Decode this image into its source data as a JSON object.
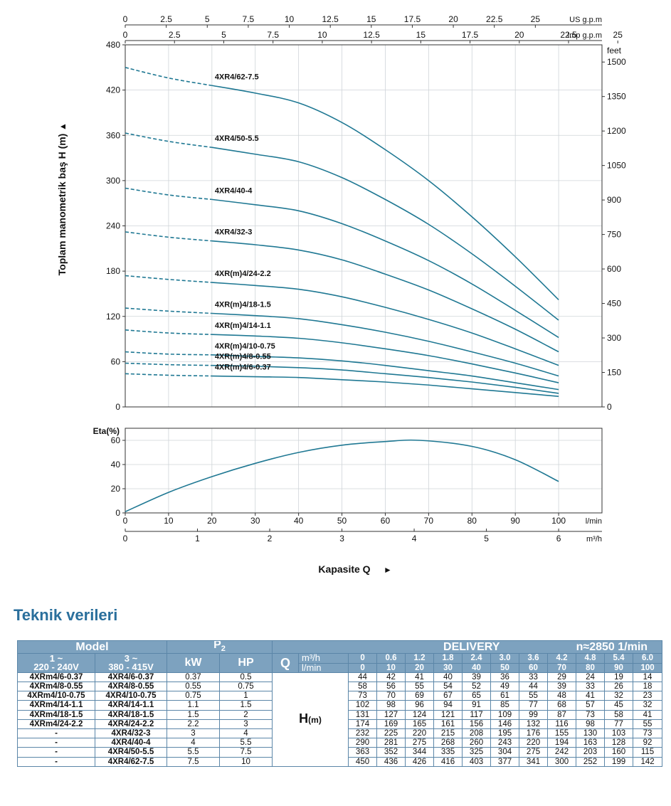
{
  "chart_data": {
    "type": "line",
    "head_chart": {
      "ylabel": "Toplam manometrik baş H (m)",
      "ylabel_arrow": "▲",
      "y_unit_right": "feet",
      "ylim": [
        0,
        480
      ],
      "yticks": [
        0,
        60,
        120,
        180,
        240,
        300,
        360,
        420,
        480
      ],
      "yticks_right": [
        0,
        150,
        300,
        450,
        600,
        750,
        900,
        1050,
        1200,
        1350,
        1500
      ],
      "xlim": [
        0,
        100
      ],
      "top_axis_us": {
        "label": "US g.p.m",
        "ticks": [
          "0",
          "2.5",
          "5",
          "7.5",
          "10",
          "12.5",
          "15",
          "17.5",
          "20",
          "22.5",
          "25"
        ]
      },
      "top_axis_imp": {
        "label": "Imp g.p.m",
        "ticks": [
          "0",
          "2.5",
          "5",
          "7.5",
          "10",
          "12.5",
          "15",
          "17.5",
          "20",
          "22.5",
          "25"
        ]
      },
      "x": [
        0,
        10,
        20,
        30,
        40,
        50,
        60,
        70,
        80,
        90,
        100
      ],
      "series": [
        {
          "name": "4XR4/62-7.5",
          "values": [
            450,
            436,
            426,
            416,
            403,
            377,
            341,
            300,
            252,
            199,
            142
          ]
        },
        {
          "name": "4XR4/50-5.5",
          "values": [
            363,
            352,
            344,
            335,
            325,
            304,
            275,
            242,
            203,
            160,
            115
          ]
        },
        {
          "name": "4XR4/40-4",
          "values": [
            290,
            281,
            275,
            268,
            260,
            243,
            220,
            194,
            163,
            128,
            92
          ]
        },
        {
          "name": "4XR4/32-3",
          "values": [
            232,
            225,
            220,
            215,
            208,
            195,
            176,
            155,
            130,
            103,
            73
          ]
        },
        {
          "name": "4XR(m)4/24-2.2",
          "values": [
            174,
            169,
            165,
            161,
            156,
            146,
            132,
            116,
            98,
            77,
            55
          ]
        },
        {
          "name": "4XR(m)4/18-1.5",
          "values": [
            131,
            127,
            124,
            121,
            117,
            109,
            99,
            87,
            73,
            58,
            41
          ]
        },
        {
          "name": "4XR(m)4/14-1.1",
          "values": [
            102,
            98,
            96,
            94,
            91,
            85,
            77,
            68,
            57,
            45,
            32
          ]
        },
        {
          "name": "4XR(m)4/10-0.75",
          "values": [
            73,
            70,
            69,
            67,
            65,
            61,
            55,
            48,
            41,
            32,
            23
          ]
        },
        {
          "name": "4XR(m)4/8-0.55",
          "values": [
            58,
            56,
            55,
            54,
            52,
            49,
            44,
            39,
            33,
            26,
            18
          ]
        },
        {
          "name": "4XR(m)4/6-0.37",
          "values": [
            44,
            42,
            41,
            40,
            39,
            36,
            33,
            29,
            24,
            19,
            14
          ]
        }
      ],
      "dashed_until_x": 20
    },
    "eta_chart": {
      "ylabel": "Eta(%)",
      "ylim": [
        0,
        70
      ],
      "yticks": [
        0,
        20,
        40,
        60
      ],
      "x": [
        0,
        10,
        20,
        30,
        40,
        50,
        60,
        68,
        80,
        90,
        100
      ],
      "values": [
        1,
        17,
        30,
        41,
        50,
        56,
        59,
        60,
        55,
        44,
        26
      ]
    },
    "x_axis_lmin": {
      "label": "l/min",
      "ticks": [
        0,
        10,
        20,
        30,
        40,
        50,
        60,
        70,
        80,
        90,
        100
      ]
    },
    "x_axis_m3h": {
      "label": "m³/h",
      "ticks": [
        0,
        1,
        2,
        3,
        4,
        5,
        6
      ]
    },
    "xlabel": "Kapasite Q",
    "xlabel_arrow": "►"
  },
  "section_title": "Teknik verileri",
  "table": {
    "model_label": "Model",
    "p2_label": "P",
    "p2_sub": "2",
    "delivery_label": "DELIVERY",
    "speed_label": "n≈2850 1/min",
    "phase1_line1": "1 ~",
    "phase1_line2": "220 - 240V",
    "phase3_line1": "3 ~",
    "phase3_line2": "380 - 415V",
    "kw_label": "kW",
    "hp_label": "HP",
    "q_label": "Q",
    "q_unit_m3h": "m³/h",
    "q_unit_lmin": "l/min",
    "q_m3h": [
      "0",
      "0.6",
      "1.2",
      "1.8",
      "2.4",
      "3.0",
      "3.6",
      "4.2",
      "4.8",
      "5.4",
      "6.0"
    ],
    "q_lmin": [
      "0",
      "10",
      "20",
      "30",
      "40",
      "50",
      "60",
      "70",
      "80",
      "90",
      "100"
    ],
    "h_label": "H",
    "h_unit": "(m)",
    "rows": [
      {
        "m1": "4XRm4/6-0.37",
        "m3": "4XR4/6-0.37",
        "kw": "0.37",
        "hp": "0.5",
        "h": [
          "44",
          "42",
          "41",
          "40",
          "39",
          "36",
          "33",
          "29",
          "24",
          "19",
          "14"
        ]
      },
      {
        "m1": "4XRm4/8-0.55",
        "m3": "4XR4/8-0.55",
        "kw": "0.55",
        "hp": "0.75",
        "h": [
          "58",
          "56",
          "55",
          "54",
          "52",
          "49",
          "44",
          "39",
          "33",
          "26",
          "18"
        ]
      },
      {
        "m1": "4XRm4/10-0.75",
        "m3": "4XR4/10-0.75",
        "kw": "0.75",
        "hp": "1",
        "h": [
          "73",
          "70",
          "69",
          "67",
          "65",
          "61",
          "55",
          "48",
          "41",
          "32",
          "23"
        ]
      },
      {
        "m1": "4XRm4/14-1.1",
        "m3": "4XR4/14-1.1",
        "kw": "1.1",
        "hp": "1.5",
        "h": [
          "102",
          "98",
          "96",
          "94",
          "91",
          "85",
          "77",
          "68",
          "57",
          "45",
          "32"
        ]
      },
      {
        "m1": "4XRm4/18-1.5",
        "m3": "4XR4/18-1.5",
        "kw": "1.5",
        "hp": "2",
        "h": [
          "131",
          "127",
          "124",
          "121",
          "117",
          "109",
          "99",
          "87",
          "73",
          "58",
          "41"
        ]
      },
      {
        "m1": "4XRm4/24-2.2",
        "m3": "4XR4/24-2.2",
        "kw": "2.2",
        "hp": "3",
        "h": [
          "174",
          "169",
          "165",
          "161",
          "156",
          "146",
          "132",
          "116",
          "98",
          "77",
          "55"
        ]
      },
      {
        "m1": "-",
        "m3": "4XR4/32-3",
        "kw": "3",
        "hp": "4",
        "h": [
          "232",
          "225",
          "220",
          "215",
          "208",
          "195",
          "176",
          "155",
          "130",
          "103",
          "73"
        ]
      },
      {
        "m1": "-",
        "m3": "4XR4/40-4",
        "kw": "4",
        "hp": "5.5",
        "h": [
          "290",
          "281",
          "275",
          "268",
          "260",
          "243",
          "220",
          "194",
          "163",
          "128",
          "92"
        ]
      },
      {
        "m1": "-",
        "m3": "4XR4/50-5.5",
        "kw": "5.5",
        "hp": "7.5",
        "h": [
          "363",
          "352",
          "344",
          "335",
          "325",
          "304",
          "275",
          "242",
          "203",
          "160",
          "115"
        ]
      },
      {
        "m1": "-",
        "m3": "4XR4/62-7.5",
        "kw": "7.5",
        "hp": "10",
        "h": [
          "450",
          "436",
          "426",
          "416",
          "403",
          "377",
          "341",
          "300",
          "252",
          "199",
          "142"
        ]
      }
    ]
  },
  "colors": {
    "curve": "#1f7893",
    "axis": "#333333",
    "grid": "#cfd4d8",
    "title": "#2a6f9c",
    "table_header": "#7da2bf",
    "table_border": "#5b86a8"
  }
}
